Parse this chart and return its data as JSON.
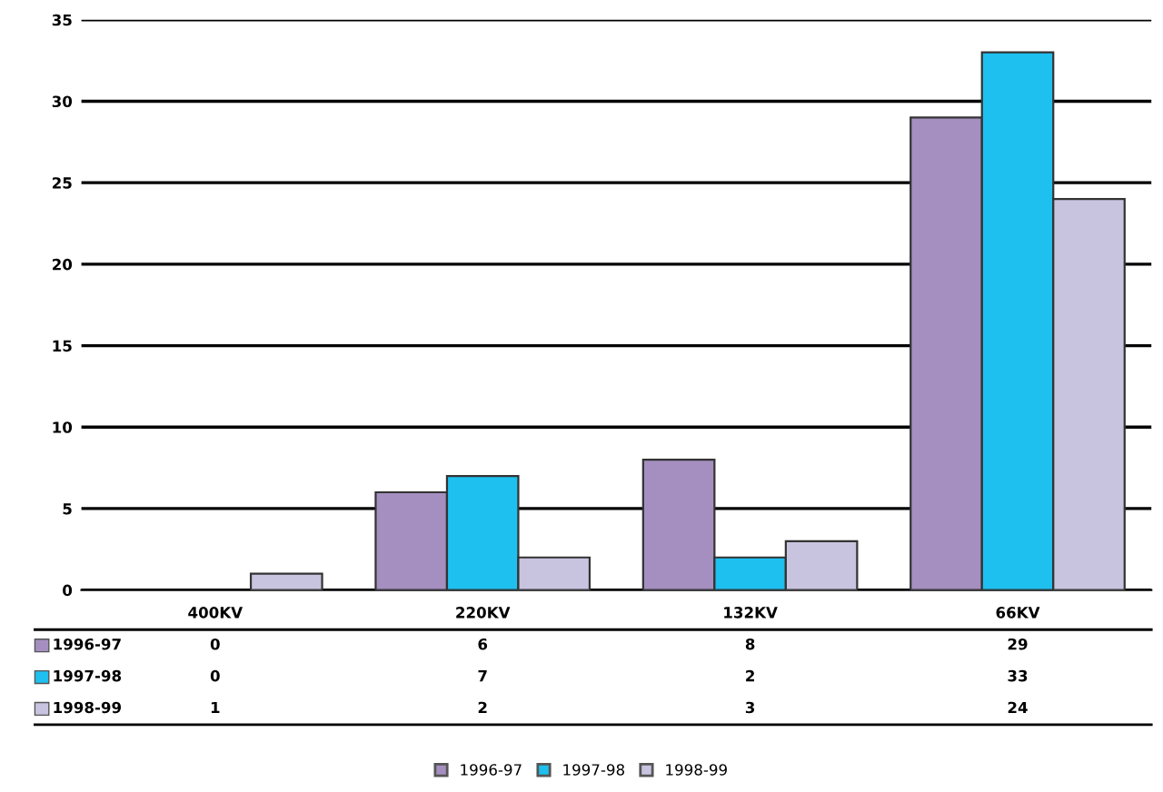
{
  "chart_data": {
    "type": "bar",
    "categories": [
      "400KV",
      "220KV",
      "132KV",
      "66KV"
    ],
    "series": [
      {
        "name": "1996-97",
        "color": "#a58fc0",
        "values": [
          0,
          6,
          8,
          29
        ]
      },
      {
        "name": "1997-98",
        "color": "#1ec0f0",
        "values": [
          0,
          7,
          2,
          33
        ]
      },
      {
        "name": "1998-99",
        "color": "#c8c4e0",
        "values": [
          1,
          2,
          3,
          24
        ]
      }
    ],
    "ylim": [
      0,
      35
    ],
    "yticks": [
      0,
      5,
      10,
      15,
      20,
      25,
      30,
      35
    ],
    "grid": "y",
    "legend": "bottom",
    "data_labels": true
  }
}
